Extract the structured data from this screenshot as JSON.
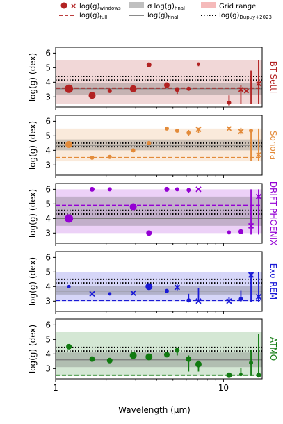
{
  "legend": {
    "windows": "log(g)",
    "windows_sub": "windows",
    "full": "log(g)",
    "full_sub": "full",
    "sigma": "σ log(g)",
    "sigma_sub": "final",
    "final": "log(g)",
    "final_sub": "final",
    "grid": "Grid range",
    "dupuy": "log(g)",
    "dupuy_sub": "Dupuy+2023"
  },
  "xlabel": "Wavelength (μm)",
  "ylabel": "log(g) (dex)",
  "xlim": [
    1,
    17
  ],
  "x_scale": "log",
  "x_ticks": [
    {
      "value": 1,
      "label": "1"
    },
    {
      "value": 10,
      "label": "10"
    }
  ],
  "ylim": [
    2.3,
    6.4
  ],
  "y_ticks": [
    3,
    4,
    5,
    6
  ],
  "chart_data": [
    {
      "type": "scatter",
      "model": "BT-Settl",
      "color": "#b22222",
      "grid_range": [
        2.5,
        5.5
      ],
      "full": 3.6,
      "final": 3.55,
      "sigma": [
        3.15,
        3.95
      ],
      "dupuy": [
        4.15,
        4.4
      ],
      "points": [
        {
          "x": 1.2,
          "y": 3.55,
          "size": 6,
          "marker": "circle"
        },
        {
          "x": 1.65,
          "y": 3.1,
          "size": 5,
          "marker": "circle"
        },
        {
          "x": 2.1,
          "y": 3.4,
          "size": 3,
          "marker": "circle"
        },
        {
          "x": 2.9,
          "y": 3.55,
          "size": 5,
          "marker": "circle"
        },
        {
          "x": 3.6,
          "y": 5.2,
          "size": 3.5,
          "marker": "circle"
        },
        {
          "x": 4.6,
          "y": 3.8,
          "size": 4,
          "marker": "circle"
        },
        {
          "x": 5.3,
          "y": 3.5,
          "size": 3.5,
          "marker": "circle"
        },
        {
          "x": 6.2,
          "y": 3.55,
          "size": 3,
          "marker": "circle"
        },
        {
          "x": 7.1,
          "y": 5.25,
          "size": 2.5,
          "marker": "circle"
        },
        {
          "x": 10.8,
          "y": 2.6,
          "size": 3,
          "marker": "circle"
        },
        {
          "x": 12.7,
          "y": 3.5,
          "size": 3,
          "marker": "cross"
        },
        {
          "x": 13.7,
          "y": 3.4,
          "size": 3,
          "marker": "cross"
        },
        {
          "x": 16.2,
          "y": 3.9,
          "size": 3,
          "marker": "cross"
        }
      ],
      "errorbars": [
        {
          "x": 5.3,
          "lo": 3.2,
          "hi": 3.6
        },
        {
          "x": 7.1,
          "lo": 5.1,
          "hi": 5.35
        },
        {
          "x": 10.8,
          "lo": 2.4,
          "hi": 3.1
        },
        {
          "x": 12.7,
          "lo": 2.5,
          "hi": 3.8
        },
        {
          "x": 14.6,
          "lo": 2.5,
          "hi": 4.8
        },
        {
          "x": 16.2,
          "lo": 2.5,
          "hi": 5.5
        }
      ]
    },
    {
      "type": "scatter",
      "model": "Sonora",
      "color": "#e38b3a",
      "grid_range": [
        3.25,
        5.5
      ],
      "full": 3.5,
      "final": 4.35,
      "sigma": [
        4.0,
        4.75
      ],
      "dupuy": [
        4.25,
        4.5
      ],
      "points": [
        {
          "x": 1.2,
          "y": 4.4,
          "size": 5,
          "marker": "circle"
        },
        {
          "x": 1.65,
          "y": 3.5,
          "size": 3,
          "marker": "circle"
        },
        {
          "x": 2.1,
          "y": 3.55,
          "size": 3,
          "marker": "circle"
        },
        {
          "x": 2.9,
          "y": 4.0,
          "size": 3,
          "marker": "circle"
        },
        {
          "x": 3.6,
          "y": 4.5,
          "size": 3,
          "marker": "circle"
        },
        {
          "x": 4.6,
          "y": 5.5,
          "size": 3,
          "marker": "circle"
        },
        {
          "x": 5.3,
          "y": 5.35,
          "size": 3,
          "marker": "circle"
        },
        {
          "x": 6.2,
          "y": 5.2,
          "size": 3,
          "marker": "circle"
        },
        {
          "x": 7.1,
          "y": 5.45,
          "size": 3.5,
          "marker": "cross"
        },
        {
          "x": 10.8,
          "y": 5.5,
          "size": 3,
          "marker": "cross"
        },
        {
          "x": 12.7,
          "y": 5.3,
          "size": 3.5,
          "marker": "cross"
        },
        {
          "x": 14.6,
          "y": 5.35,
          "size": 3,
          "marker": "circle"
        },
        {
          "x": 16.2,
          "y": 3.7,
          "size": 3,
          "marker": "cross"
        }
      ],
      "errorbars": [
        {
          "x": 6.2,
          "lo": 5.0,
          "hi": 5.4
        },
        {
          "x": 7.1,
          "lo": 5.2,
          "hi": 5.55
        },
        {
          "x": 12.7,
          "lo": 5.1,
          "hi": 5.55
        },
        {
          "x": 14.6,
          "lo": 3.3,
          "hi": 5.45
        },
        {
          "x": 16.2,
          "lo": 3.3,
          "hi": 5.5
        }
      ]
    },
    {
      "type": "scatter",
      "model": "DRIFT-PHOENIX",
      "color": "#9400d3",
      "grid_range": [
        3.0,
        6.0
      ],
      "full": 4.9,
      "final": 4.0,
      "sigma": [
        3.5,
        5.5
      ],
      "dupuy": [
        4.3,
        4.55
      ],
      "points": [
        {
          "x": 1.2,
          "y": 4.0,
          "size": 6,
          "marker": "circle"
        },
        {
          "x": 1.65,
          "y": 6.0,
          "size": 3.5,
          "marker": "circle"
        },
        {
          "x": 2.1,
          "y": 6.0,
          "size": 3,
          "marker": "circle"
        },
        {
          "x": 2.9,
          "y": 4.8,
          "size": 5,
          "marker": "circle"
        },
        {
          "x": 3.6,
          "y": 3.0,
          "size": 4,
          "marker": "circle"
        },
        {
          "x": 4.6,
          "y": 6.0,
          "size": 3.5,
          "marker": "circle"
        },
        {
          "x": 5.3,
          "y": 6.0,
          "size": 3,
          "marker": "circle"
        },
        {
          "x": 6.2,
          "y": 5.95,
          "size": 3,
          "marker": "circle"
        },
        {
          "x": 7.1,
          "y": 6.0,
          "size": 3.5,
          "marker": "cross"
        },
        {
          "x": 10.8,
          "y": 3.05,
          "size": 2.5,
          "marker": "circle"
        },
        {
          "x": 12.7,
          "y": 3.1,
          "size": 3.5,
          "marker": "circle"
        },
        {
          "x": 14.6,
          "y": 3.5,
          "size": 3.5,
          "marker": "cross"
        },
        {
          "x": 16.2,
          "y": 5.5,
          "size": 3.5,
          "marker": "cross"
        }
      ],
      "errorbars": [
        {
          "x": 6.2,
          "lo": 5.75,
          "hi": 6.05
        },
        {
          "x": 10.8,
          "lo": 2.9,
          "hi": 3.2
        },
        {
          "x": 14.6,
          "lo": 2.9,
          "hi": 6.0
        },
        {
          "x": 16.2,
          "lo": 2.9,
          "hi": 6.0
        }
      ]
    },
    {
      "type": "scatter",
      "model": "Exo-REM",
      "color": "#1a1ad6",
      "grid_range": [
        3.0,
        5.0
      ],
      "full": 3.05,
      "final": 3.7,
      "sigma": [
        3.45,
        4.05
      ],
      "dupuy": [
        4.25,
        4.5
      ],
      "points": [
        {
          "x": 1.2,
          "y": 4.0,
          "size": 2.5,
          "marker": "circle"
        },
        {
          "x": 1.65,
          "y": 3.5,
          "size": 3.5,
          "marker": "cross"
        },
        {
          "x": 2.1,
          "y": 3.5,
          "size": 2.5,
          "marker": "circle"
        },
        {
          "x": 2.9,
          "y": 3.55,
          "size": 3.5,
          "marker": "cross"
        },
        {
          "x": 3.6,
          "y": 4.0,
          "size": 5,
          "marker": "circle"
        },
        {
          "x": 4.6,
          "y": 3.7,
          "size": 3,
          "marker": "circle"
        },
        {
          "x": 5.3,
          "y": 3.95,
          "size": 3.5,
          "marker": "cross"
        },
        {
          "x": 6.2,
          "y": 3.05,
          "size": 3,
          "marker": "circle"
        },
        {
          "x": 7.1,
          "y": 3.0,
          "size": 3.5,
          "marker": "cross"
        },
        {
          "x": 10.8,
          "y": 3.0,
          "size": 3.5,
          "marker": "cross"
        },
        {
          "x": 12.7,
          "y": 3.15,
          "size": 3,
          "marker": "circle"
        },
        {
          "x": 14.6,
          "y": 4.8,
          "size": 3.5,
          "marker": "cross"
        },
        {
          "x": 16.2,
          "y": 3.3,
          "size": 3.5,
          "marker": "cross"
        }
      ],
      "errorbars": [
        {
          "x": 5.3,
          "lo": 3.75,
          "hi": 4.15
        },
        {
          "x": 6.2,
          "lo": 2.95,
          "hi": 3.5
        },
        {
          "x": 7.1,
          "lo": 2.95,
          "hi": 3.9
        },
        {
          "x": 10.8,
          "lo": 2.95,
          "hi": 3.3
        },
        {
          "x": 12.7,
          "lo": 2.95,
          "hi": 3.75
        },
        {
          "x": 14.6,
          "lo": 2.95,
          "hi": 5.0
        },
        {
          "x": 16.2,
          "lo": 2.95,
          "hi": 5.0
        }
      ]
    },
    {
      "type": "scatter",
      "model": "ATMO",
      "color": "#117a11",
      "grid_range": [
        2.5,
        5.5
      ],
      "full": 2.55,
      "final": 3.6,
      "sigma": [
        3.1,
        4.1
      ],
      "dupuy": [
        4.2,
        4.45
      ],
      "points": [
        {
          "x": 1.2,
          "y": 4.5,
          "size": 4,
          "marker": "circle"
        },
        {
          "x": 1.65,
          "y": 3.65,
          "size": 4,
          "marker": "circle"
        },
        {
          "x": 2.1,
          "y": 3.55,
          "size": 4,
          "marker": "circle"
        },
        {
          "x": 2.9,
          "y": 3.9,
          "size": 5,
          "marker": "circle"
        },
        {
          "x": 3.6,
          "y": 3.8,
          "size": 5,
          "marker": "circle"
        },
        {
          "x": 4.6,
          "y": 3.95,
          "size": 4,
          "marker": "circle"
        },
        {
          "x": 5.3,
          "y": 4.25,
          "size": 3.5,
          "marker": "circle"
        },
        {
          "x": 6.2,
          "y": 3.65,
          "size": 4,
          "marker": "circle"
        },
        {
          "x": 7.1,
          "y": 3.3,
          "size": 4.5,
          "marker": "circle"
        },
        {
          "x": 10.8,
          "y": 2.55,
          "size": 4,
          "marker": "circle"
        },
        {
          "x": 12.7,
          "y": 2.6,
          "size": 2.5,
          "marker": "circle"
        },
        {
          "x": 14.6,
          "y": 3.4,
          "size": 3,
          "marker": "circle"
        },
        {
          "x": 16.2,
          "y": 2.55,
          "size": 3.5,
          "marker": "circle"
        }
      ],
      "errorbars": [
        {
          "x": 5.3,
          "lo": 3.9,
          "hi": 4.45
        },
        {
          "x": 6.2,
          "lo": 2.8,
          "hi": 3.9
        },
        {
          "x": 7.1,
          "lo": 2.8,
          "hi": 3.55
        },
        {
          "x": 12.7,
          "lo": 2.5,
          "hi": 3.05
        },
        {
          "x": 14.6,
          "lo": 2.5,
          "hi": 4.3
        },
        {
          "x": 16.2,
          "lo": 2.5,
          "hi": 5.4
        }
      ]
    }
  ]
}
